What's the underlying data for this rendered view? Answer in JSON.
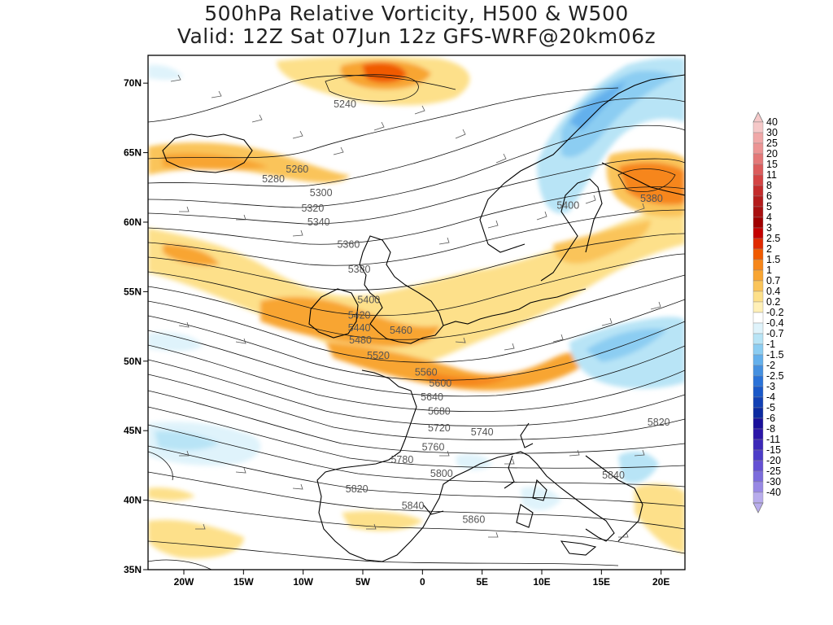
{
  "title": {
    "line1": "500hPa Relative Vorticity, H500 & W500",
    "line2": "Valid: 12Z Sat 07Jun 12z GFS-WRF@20km06z"
  },
  "map": {
    "lon_range": [
      -23,
      22
    ],
    "lat_range": [
      35,
      72
    ],
    "lat_ticks": [
      {
        "lat": 70,
        "label": "70N"
      },
      {
        "lat": 65,
        "label": "65N"
      },
      {
        "lat": 60,
        "label": "60N"
      },
      {
        "lat": 55,
        "label": "55N"
      },
      {
        "lat": 50,
        "label": "50N"
      },
      {
        "lat": 45,
        "label": "45N"
      },
      {
        "lat": 40,
        "label": "40N"
      },
      {
        "lat": 35,
        "label": "35N"
      }
    ],
    "lon_ticks": [
      {
        "lon": -20,
        "label": "20W"
      },
      {
        "lon": -15,
        "label": "15W"
      },
      {
        "lon": -10,
        "label": "10W"
      },
      {
        "lon": -5,
        "label": "5W"
      },
      {
        "lon": 0,
        "label": "0"
      },
      {
        "lon": 5,
        "label": "5E"
      },
      {
        "lon": 10,
        "label": "10E"
      },
      {
        "lon": 15,
        "label": "15E"
      },
      {
        "lon": 20,
        "label": "20E"
      }
    ],
    "contour_labels": [
      {
        "text": "5240",
        "lon": -6.5,
        "lat": 68.5
      },
      {
        "text": "5260",
        "lon": -10.5,
        "lat": 63.8
      },
      {
        "text": "5280",
        "lon": -12.5,
        "lat": 63.1
      },
      {
        "text": "5300",
        "lon": -8.5,
        "lat": 62.1
      },
      {
        "text": "5320",
        "lon": -9.2,
        "lat": 61.0
      },
      {
        "text": "5340",
        "lon": -8.7,
        "lat": 60.0
      },
      {
        "text": "5360",
        "lon": -6.2,
        "lat": 58.4
      },
      {
        "text": "5380",
        "lon": -5.3,
        "lat": 56.6
      },
      {
        "text": "5400",
        "lon": -4.5,
        "lat": 54.4
      },
      {
        "text": "5420",
        "lon": -5.3,
        "lat": 53.3
      },
      {
        "text": "5440",
        "lon": -5.3,
        "lat": 52.4
      },
      {
        "text": "5460",
        "lon": -1.8,
        "lat": 52.2
      },
      {
        "text": "5480",
        "lon": -5.2,
        "lat": 51.5
      },
      {
        "text": "5520",
        "lon": -3.7,
        "lat": 50.4
      },
      {
        "text": "5560",
        "lon": 0.3,
        "lat": 49.2
      },
      {
        "text": "5600",
        "lon": 1.5,
        "lat": 48.4
      },
      {
        "text": "5640",
        "lon": 0.8,
        "lat": 47.4
      },
      {
        "text": "5680",
        "lon": 1.4,
        "lat": 46.4
      },
      {
        "text": "5720",
        "lon": 1.4,
        "lat": 45.2
      },
      {
        "text": "5740",
        "lon": 5.0,
        "lat": 44.9
      },
      {
        "text": "5760",
        "lon": 0.9,
        "lat": 43.8
      },
      {
        "text": "5780",
        "lon": -1.7,
        "lat": 42.9
      },
      {
        "text": "5800",
        "lon": 1.6,
        "lat": 41.9
      },
      {
        "text": "5820",
        "lon": -5.5,
        "lat": 40.8
      },
      {
        "text": "5840",
        "lon": -0.8,
        "lat": 39.6
      },
      {
        "text": "5860",
        "lon": 4.3,
        "lat": 38.6
      },
      {
        "text": "5400",
        "lon": 12.2,
        "lat": 61.2
      },
      {
        "text": "5380",
        "lon": 19.2,
        "lat": 61.7
      },
      {
        "text": "5820",
        "lon": 19.8,
        "lat": 45.6
      },
      {
        "text": "5840",
        "lon": 16.0,
        "lat": 41.8
      }
    ]
  },
  "colorbar": {
    "levels": [
      {
        "label": "40",
        "color": "#f5c8c8"
      },
      {
        "label": "30",
        "color": "#f0a8a8"
      },
      {
        "label": "25",
        "color": "#ec9494"
      },
      {
        "label": "20",
        "color": "#e47878"
      },
      {
        "label": "15",
        "color": "#dc5c5c"
      },
      {
        "label": "11",
        "color": "#d44444"
      },
      {
        "label": "8",
        "color": "#c42c2c"
      },
      {
        "label": "6",
        "color": "#b41c1c"
      },
      {
        "label": "5",
        "color": "#a81010"
      },
      {
        "label": "4",
        "color": "#a00000"
      },
      {
        "label": "3",
        "color": "#c40000"
      },
      {
        "label": "2.5",
        "color": "#e02a00"
      },
      {
        "label": "2",
        "color": "#f05a00"
      },
      {
        "label": "1.5",
        "color": "#f6861a"
      },
      {
        "label": "1",
        "color": "#f8a532"
      },
      {
        "label": "0.7",
        "color": "#fac45a"
      },
      {
        "label": "0.4",
        "color": "#fde08a"
      },
      {
        "label": "0.2",
        "color": "#fff0b8"
      },
      {
        "label": "-0.2",
        "color": "#ffffff"
      },
      {
        "label": "-0.4",
        "color": "#dff3fb"
      },
      {
        "label": "-0.7",
        "color": "#b8e4f6"
      },
      {
        "label": "-1",
        "color": "#8ccdf2"
      },
      {
        "label": "-1.5",
        "color": "#64b0ec"
      },
      {
        "label": "-2",
        "color": "#4590e0"
      },
      {
        "label": "-2.5",
        "color": "#2a72d8"
      },
      {
        "label": "-3",
        "color": "#1a58c8"
      },
      {
        "label": "-4",
        "color": "#1240b4"
      },
      {
        "label": "-5",
        "color": "#0c2aa0"
      },
      {
        "label": "-6",
        "color": "#1a109a"
      },
      {
        "label": "-8",
        "color": "#2c16a8"
      },
      {
        "label": "-11",
        "color": "#3c28b8"
      },
      {
        "label": "-15",
        "color": "#4c3cc8"
      },
      {
        "label": "-20",
        "color": "#6450d4"
      },
      {
        "label": "-25",
        "color": "#7c6cdc"
      },
      {
        "label": "-30",
        "color": "#9888e4"
      },
      {
        "label": "-40",
        "color": "#b8acec"
      }
    ]
  }
}
